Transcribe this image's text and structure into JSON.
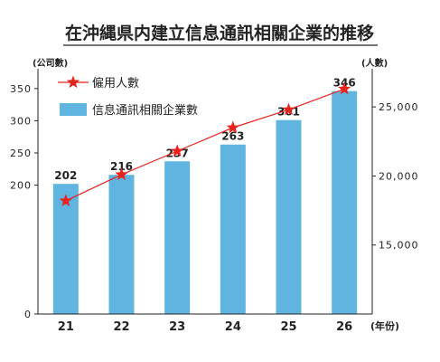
{
  "chart_data": {
    "type": "bar",
    "title": "在沖縄県内建立信息通訊相關企業的推移",
    "categories": [
      "21",
      "22",
      "23",
      "24",
      "25",
      "26"
    ],
    "x_unit": "(年份)",
    "left_axis": {
      "unit": "(公司數)",
      "range": [
        0,
        375
      ],
      "ticks": [
        0,
        200,
        250,
        300,
        350
      ]
    },
    "right_axis": {
      "unit": "(人數)",
      "range": [
        10000,
        27500
      ],
      "ticks": [
        15000,
        20000,
        25000
      ],
      "tick_labels": [
        "15,000",
        "20,000",
        "25,000"
      ]
    },
    "series": [
      {
        "name": "信息通訊相關企業數",
        "kind": "bar",
        "axis": "left",
        "color": "#5fb4e0",
        "values": [
          202,
          216,
          237,
          263,
          301,
          346
        ]
      },
      {
        "name": "僱用人數",
        "kind": "line",
        "axis": "right",
        "color": "#e8231c",
        "values": [
          18200,
          20100,
          21800,
          23500,
          24800,
          26300
        ]
      }
    ],
    "legend": "top-left"
  }
}
